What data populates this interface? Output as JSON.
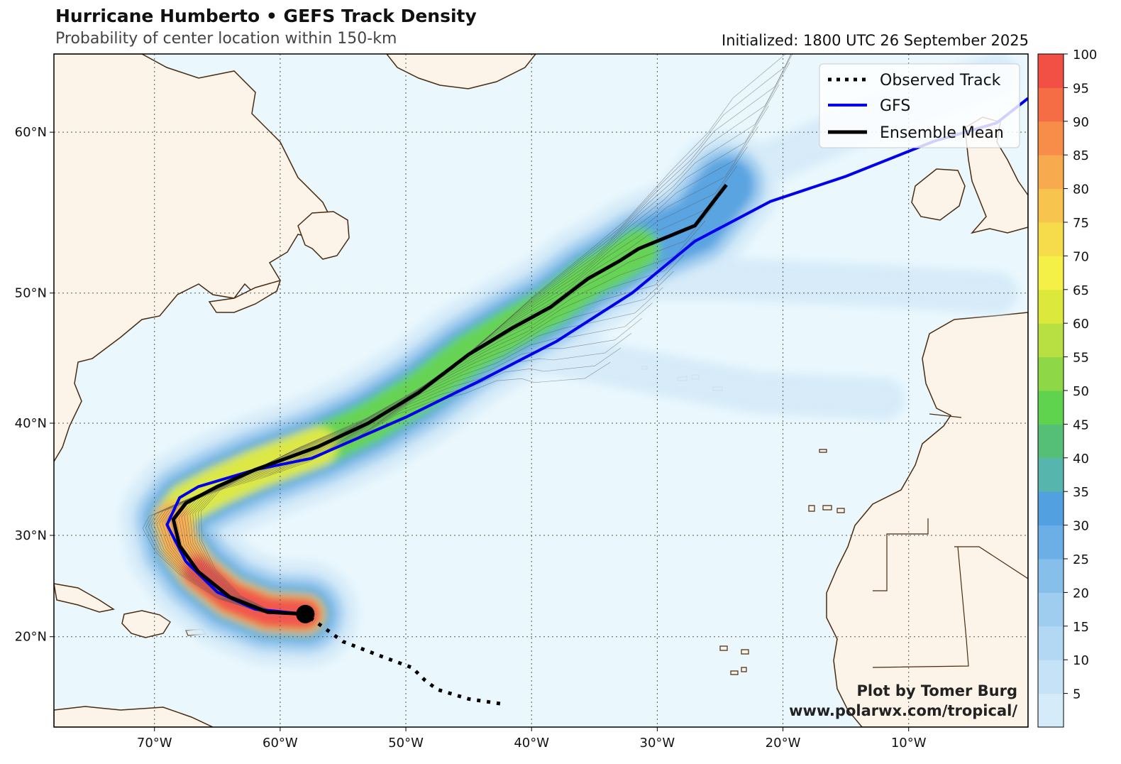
{
  "header": {
    "title": "Hurricane Humberto • GEFS Track Density",
    "subtitle": "Probability of center location within 150-km",
    "initialized": "Initialized: 1800 UTC 26 September 2025"
  },
  "map": {
    "lon_range": [
      -78,
      -0.5
    ],
    "lat_range": [
      10.5,
      64
    ],
    "lon_ticks": [
      {
        "value": -70,
        "label": "70°W"
      },
      {
        "value": -60,
        "label": "60°W"
      },
      {
        "value": -50,
        "label": "50°W"
      },
      {
        "value": -40,
        "label": "40°W"
      },
      {
        "value": -30,
        "label": "30°W"
      },
      {
        "value": -20,
        "label": "20°W"
      },
      {
        "value": -10,
        "label": "10°W"
      }
    ],
    "lat_ticks": [
      {
        "value": 20,
        "label": "20°N"
      },
      {
        "value": 30,
        "label": "30°N"
      },
      {
        "value": 40,
        "label": "40°N"
      },
      {
        "value": 50,
        "label": "50°N"
      },
      {
        "value": 60,
        "label": "60°N"
      }
    ],
    "colors": {
      "ocean": "#eaf8fd",
      "land": "#fcf4e8",
      "coast": "#4a2a10",
      "grid": "#555555"
    }
  },
  "legend": {
    "items": [
      {
        "label": "Observed Track",
        "style": "dotted",
        "color": "#000000"
      },
      {
        "label": "GFS",
        "style": "solid",
        "color": "#0000ee"
      },
      {
        "label": "Ensemble Mean",
        "style": "solid",
        "color": "#000000"
      }
    ]
  },
  "colorbar": {
    "ticks": [
      5,
      10,
      15,
      20,
      25,
      30,
      35,
      40,
      45,
      50,
      55,
      60,
      65,
      70,
      75,
      80,
      85,
      90,
      95,
      100
    ],
    "tick_labels": [
      "5",
      "10",
      "15",
      "20",
      "25",
      "30",
      "35",
      "40",
      "45",
      "50",
      "55",
      "60",
      "65",
      "70",
      "75",
      "80",
      "85",
      "90",
      "95",
      "100"
    ],
    "colors": [
      "#d6ebf9",
      "#c6e2f6",
      "#b3d8f3",
      "#9fcdef",
      "#86bfea",
      "#6cafe6",
      "#52a0e0",
      "#56b6ad",
      "#55bf78",
      "#5fd24e",
      "#8ed848",
      "#b8e043",
      "#dde83c",
      "#f4f047",
      "#f6dc4a",
      "#f7c44d",
      "#f8aa4e",
      "#f78d49",
      "#f56d45",
      "#f24f45"
    ]
  },
  "tracks": {
    "observed": [
      [
        -42.5,
        13.0
      ],
      [
        -45,
        13.5
      ],
      [
        -47.5,
        14.5
      ],
      [
        -48.5,
        15.5
      ],
      [
        -49.5,
        16.8
      ],
      [
        -52,
        18.0
      ],
      [
        -55,
        19.5
      ],
      [
        -58,
        22.3
      ]
    ],
    "gfs": [
      [
        -58,
        22.3
      ],
      [
        -62,
        22.8
      ],
      [
        -65,
        24.5
      ],
      [
        -67.5,
        27.5
      ],
      [
        -69,
        31
      ],
      [
        -68,
        33.5
      ],
      [
        -66.5,
        34.5
      ],
      [
        -62,
        36.0
      ],
      [
        -57.5,
        37.0
      ],
      [
        -50,
        40.5
      ],
      [
        -44,
        43.5
      ],
      [
        -38,
        46.5
      ],
      [
        -32,
        50
      ],
      [
        -27,
        53.5
      ],
      [
        -21,
        56.0
      ],
      [
        -15,
        57.5
      ],
      [
        -8,
        59.5
      ],
      [
        -3,
        60.5
      ],
      [
        -0.5,
        61.8
      ]
    ],
    "ensemble_mean": [
      [
        -58,
        22.3
      ],
      [
        -61,
        22.5
      ],
      [
        -64,
        24.0
      ],
      [
        -66.5,
        26.5
      ],
      [
        -68,
        29
      ],
      [
        -68.5,
        31.5
      ],
      [
        -67.5,
        33
      ],
      [
        -65,
        34.5
      ],
      [
        -62,
        36
      ],
      [
        -57,
        38
      ],
      [
        -53,
        40
      ],
      [
        -49,
        42.5
      ],
      [
        -45,
        45.5
      ],
      [
        -41.5,
        47.5
      ],
      [
        -38.5,
        49
      ],
      [
        -35.5,
        51
      ],
      [
        -33,
        52.2
      ],
      [
        -31.5,
        53
      ],
      [
        -27,
        54.5
      ],
      [
        -24.5,
        57
      ]
    ],
    "storm_position": [
      -58,
      22.3
    ]
  },
  "credit": {
    "line1": "Plot by Tomer Burg",
    "line2": "www.polarwx.com/tropical/"
  }
}
